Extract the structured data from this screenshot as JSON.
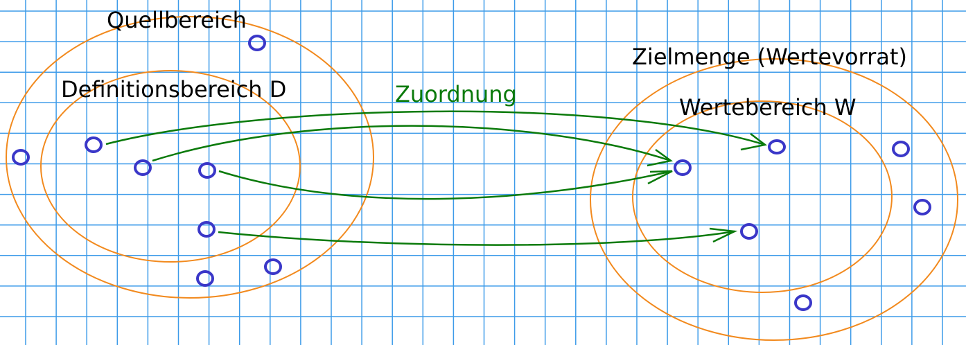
{
  "labels": {
    "source_set": "Quellbereich",
    "domain": "Definitionsbereich D",
    "mapping": "Zuordnung",
    "target_set": "Zielmenge (Wertevorrat)",
    "range": "Wertebereich W"
  },
  "colors": {
    "grid": "#3d9be9",
    "set_outline": "#f28a1e",
    "element": "#3a37c8",
    "arrow": "#0a7a0a",
    "text": "#000000",
    "mapping_text": "#0a7a0a"
  }
}
